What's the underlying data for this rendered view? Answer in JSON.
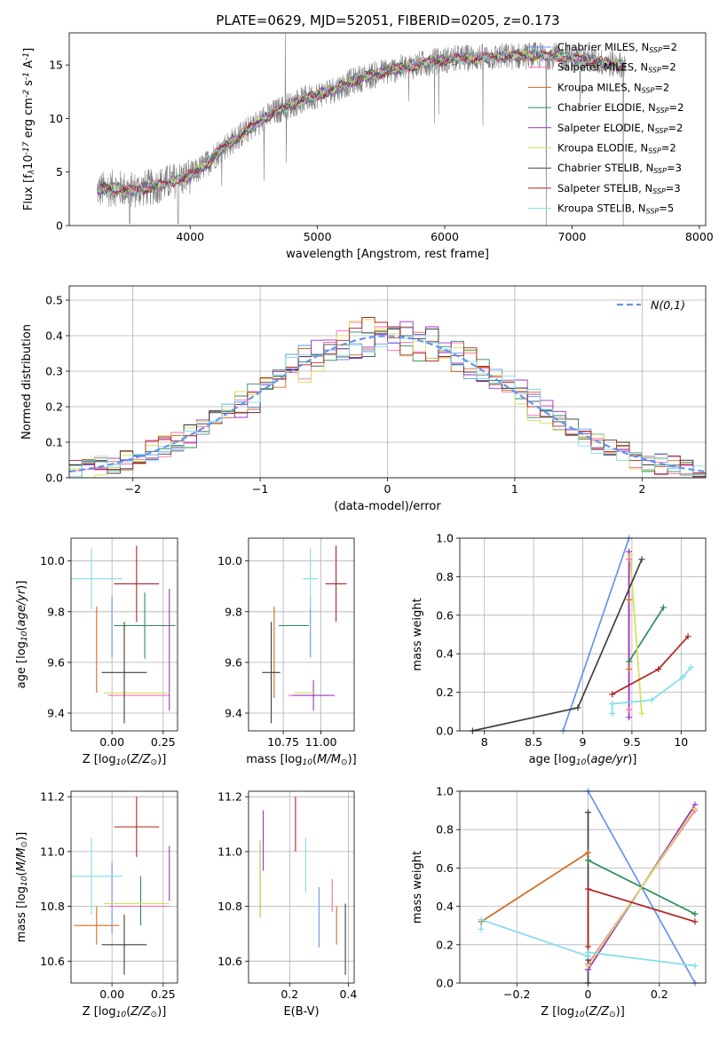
{
  "chart_data": [
    {
      "id": "spectrum",
      "type": "line",
      "title": "PLATE=0629, MJD=52051, FIBERID=0205, z=0.173",
      "xlabel": "wavelength [Angstrom, rest frame]",
      "ylabel": "Flux [f$_\\lambda$10$^{-17}$ erg cm$^{-2}$ s$^{-1}$ A$^{-1}$]",
      "xlim": [
        3050,
        8050
      ],
      "ylim": [
        0,
        18
      ],
      "xticks": [
        4000,
        5000,
        6000,
        7000,
        8000
      ],
      "yticks": [
        0,
        5,
        10,
        15
      ],
      "grid": false,
      "legend_position": "upper-right",
      "data_color": "#808080",
      "continuum": [
        [
          3270,
          3.3
        ],
        [
          3400,
          3.5
        ],
        [
          3550,
          3.3
        ],
        [
          3700,
          3.6
        ],
        [
          3850,
          4.1
        ],
        [
          3950,
          4.4
        ],
        [
          4050,
          5.0
        ],
        [
          4150,
          6.0
        ],
        [
          4250,
          7.2
        ],
        [
          4400,
          8.5
        ],
        [
          4550,
          9.8
        ],
        [
          4700,
          10.8
        ],
        [
          4850,
          11.6
        ],
        [
          5000,
          12.2
        ],
        [
          5150,
          12.8
        ],
        [
          5300,
          13.6
        ],
        [
          5500,
          14.3
        ],
        [
          5700,
          14.8
        ],
        [
          5900,
          15.3
        ],
        [
          6100,
          15.6
        ],
        [
          6300,
          15.7
        ],
        [
          6500,
          15.8
        ],
        [
          6700,
          15.9
        ],
        [
          6900,
          15.8
        ],
        [
          7100,
          15.5
        ],
        [
          7300,
          15.1
        ],
        [
          7420,
          15.0
        ]
      ],
      "series": [
        {
          "name": "Chabrier MILES, N$_{SSP}$=2",
          "color": "#6495ed"
        },
        {
          "name": "Salpeter MILES, N$_{SSP}$=2",
          "color": "#ff69b4"
        },
        {
          "name": "Kroupa MILES, N$_{SSP}$=2",
          "color": "#d2691e"
        },
        {
          "name": "Chabrier ELODIE, N$_{SSP}$=2",
          "color": "#2e8b57"
        },
        {
          "name": "Salpeter ELODIE, N$_{SSP}$=2",
          "color": "#9932cc"
        },
        {
          "name": "Kroupa ELODIE, N$_{SSP}$=2",
          "color": "#d4e157"
        },
        {
          "name": "Chabrier STELIB, N$_{SSP}$=3",
          "color": "#404040"
        },
        {
          "name": "Salpeter STELIB, N$_{SSP}$=3",
          "color": "#b22222"
        },
        {
          "name": "Kroupa STELIB, N$_{SSP}$=5",
          "color": "#80dee8"
        }
      ]
    },
    {
      "id": "residuals",
      "type": "area",
      "xlabel": "(data-model)/error",
      "ylabel": "Normed distribution",
      "xlim": [
        -2.5,
        2.5
      ],
      "ylim": [
        0,
        0.54
      ],
      "xticks": [
        -2,
        -1,
        0,
        1,
        2
      ],
      "yticks": [
        0.0,
        0.1,
        0.2,
        0.3,
        0.4,
        0.5
      ],
      "grid": true,
      "bin_width": 0.1,
      "legend_position": "upper-right",
      "reference": {
        "name": "$\\mathcal{N}(0,1)$",
        "color": "#6495ed",
        "style": "dashed"
      },
      "series": [
        {
          "color": "#6495ed"
        },
        {
          "color": "#ff69b4"
        },
        {
          "color": "#d2691e"
        },
        {
          "color": "#2e8b57"
        },
        {
          "color": "#9932cc"
        },
        {
          "color": "#d4e157"
        },
        {
          "color": "#404040"
        },
        {
          "color": "#b22222"
        },
        {
          "color": "#80dee8"
        }
      ]
    },
    {
      "id": "age-vs-Z",
      "type": "scatter",
      "xlabel": "Z [log$_{10}$($Z/Z_\\odot$)]",
      "ylabel": "age  [log$_{10}$($age/yr$)]",
      "xlim": [
        -0.2,
        0.32
      ],
      "ylim": [
        9.33,
        10.09
      ],
      "xticks": [
        0.0,
        0.25
      ],
      "xticklabels": [
        "0.00",
        "0.25"
      ],
      "yticks": [
        9.4,
        9.6,
        9.8,
        10.0
      ],
      "grid": true,
      "points": [
        {
          "color": "#6495ed",
          "x": 0.0,
          "xerr": 0.0,
          "y": 9.74,
          "yerr": 0.12
        },
        {
          "color": "#ff69b4",
          "x": 0.13,
          "xerr": 0.15,
          "y": 9.47,
          "yerr": 0.0
        },
        {
          "color": "#d2691e",
          "x": -0.075,
          "xerr": 0.0,
          "y": 9.65,
          "yerr": 0.17
        },
        {
          "color": "#2e8b57",
          "x": 0.16,
          "xerr": 0.15,
          "y": 9.745,
          "yerr": 0.13
        },
        {
          "color": "#9932cc",
          "x": 0.28,
          "xerr": 0.0,
          "y": 9.65,
          "yerr": 0.24
        },
        {
          "color": "#d4e157",
          "x": 0.12,
          "xerr": 0.16,
          "y": 9.48,
          "yerr": 0.0
        },
        {
          "color": "#404040",
          "x": 0.06,
          "xerr": 0.11,
          "y": 9.56,
          "yerr": 0.2
        },
        {
          "color": "#b22222",
          "x": 0.12,
          "xerr": 0.11,
          "y": 9.91,
          "yerr": 0.15
        },
        {
          "color": "#80dee8",
          "x": -0.1,
          "xerr": 0.15,
          "y": 9.93,
          "yerr": 0.12
        }
      ]
    },
    {
      "id": "age-vs-mass",
      "type": "scatter",
      "xlabel": "mass [log$_{10}$($M/M_\\odot$)]",
      "ylabel": "",
      "xlim": [
        10.52,
        11.22
      ],
      "ylim": [
        9.33,
        10.09
      ],
      "xticks": [
        10.75,
        11.0
      ],
      "xticklabels": [
        "10.75",
        "11.00"
      ],
      "yticks": [
        9.4,
        9.6,
        9.8,
        10.0
      ],
      "grid": true,
      "points": [
        {
          "color": "#6495ed",
          "x": 10.93,
          "xerr": 0.0,
          "y": 9.74,
          "yerr": 0.12
        },
        {
          "color": "#ff69b4",
          "x": 10.8,
          "xerr": 0.0,
          "y": 9.47,
          "yerr": 0.0
        },
        {
          "color": "#d2691e",
          "x": 10.69,
          "xerr": 0.0,
          "y": 9.64,
          "yerr": 0.18
        },
        {
          "color": "#2e8b57",
          "x": 10.82,
          "xerr": 0.1,
          "y": 9.745,
          "yerr": 0.0
        },
        {
          "color": "#9932cc",
          "x": 10.95,
          "xerr": 0.14,
          "y": 9.47,
          "yerr": 0.06
        },
        {
          "color": "#d4e157",
          "x": 10.89,
          "xerr": 0.07,
          "y": 9.48,
          "yerr": 0.0
        },
        {
          "color": "#404040",
          "x": 10.67,
          "xerr": 0.06,
          "y": 9.56,
          "yerr": 0.2
        },
        {
          "color": "#b22222",
          "x": 11.1,
          "xerr": 0.07,
          "y": 9.91,
          "yerr": 0.15
        },
        {
          "color": "#80dee8",
          "x": 10.93,
          "xerr": 0.05,
          "y": 9.93,
          "yerr": 0.12
        }
      ]
    },
    {
      "id": "weight-vs-age",
      "type": "line",
      "xlabel": "age  [log$_{10}$($age/yr$)]",
      "ylabel": "mass weight",
      "xlim": [
        7.75,
        10.25
      ],
      "ylim": [
        0,
        1.0
      ],
      "xticks": [
        8.0,
        8.5,
        9.0,
        9.5,
        10.0
      ],
      "yticks": [
        0.0,
        0.2,
        0.4,
        0.6,
        0.8,
        1.0
      ],
      "grid": true,
      "series": [
        {
          "color": "#6495ed",
          "points": [
            [
              8.8,
              0.0
            ],
            [
              9.47,
              1.0
            ]
          ]
        },
        {
          "color": "#ff69b4",
          "points": [
            [
              9.47,
              0.89
            ],
            [
              9.47,
              0.11
            ]
          ]
        },
        {
          "color": "#d2691e",
          "points": [
            [
              9.47,
              0.68
            ],
            [
              9.47,
              0.32
            ]
          ]
        },
        {
          "color": "#2e8b57",
          "points": [
            [
              9.47,
              0.36
            ],
            [
              9.82,
              0.64
            ]
          ]
        },
        {
          "color": "#9932cc",
          "points": [
            [
              9.47,
              0.93
            ],
            [
              9.47,
              0.07
            ]
          ]
        },
        {
          "color": "#d4e157",
          "points": [
            [
              9.48,
              0.91
            ],
            [
              9.6,
              0.09
            ]
          ]
        },
        {
          "color": "#404040",
          "points": [
            [
              7.88,
              0.0
            ],
            [
              8.95,
              0.12
            ],
            [
              9.6,
              0.89
            ]
          ]
        },
        {
          "color": "#b22222",
          "points": [
            [
              9.3,
              0.19
            ],
            [
              9.77,
              0.32
            ],
            [
              10.07,
              0.49
            ]
          ]
        },
        {
          "color": "#80dee8",
          "points": [
            [
              9.3,
              0.09
            ],
            [
              9.3,
              0.14
            ],
            [
              9.7,
              0.16
            ],
            [
              10.02,
              0.28
            ],
            [
              10.1,
              0.33
            ]
          ]
        }
      ]
    },
    {
      "id": "mass-vs-Z",
      "type": "scatter",
      "xlabel": "Z [log$_{10}$($Z/Z_\\odot$)]",
      "ylabel": "mass [log$_{10}$($M/M_\\odot$)]",
      "xlim": [
        -0.2,
        0.32
      ],
      "ylim": [
        10.52,
        11.22
      ],
      "xticks": [
        0.0,
        0.25
      ],
      "xticklabels": [
        "0.00",
        "0.25"
      ],
      "yticks": [
        10.6,
        10.8,
        11.0,
        11.2
      ],
      "grid": true,
      "points": [
        {
          "color": "#6495ed",
          "x": 0.0,
          "xerr": 0.0,
          "y": 10.83,
          "yerr": 0.13
        },
        {
          "color": "#ff69b4",
          "x": 0.13,
          "xerr": 0.15,
          "y": 10.8,
          "yerr": 0.0
        },
        {
          "color": "#d2691e",
          "x": -0.075,
          "xerr": 0.11,
          "y": 10.73,
          "yerr": 0.07
        },
        {
          "color": "#2e8b57",
          "x": 0.14,
          "xerr": 0.0,
          "y": 10.82,
          "yerr": 0.09
        },
        {
          "color": "#9932cc",
          "x": 0.28,
          "xerr": 0.0,
          "y": 10.92,
          "yerr": 0.1
        },
        {
          "color": "#d4e157",
          "x": 0.12,
          "xerr": 0.16,
          "y": 10.81,
          "yerr": 0.0
        },
        {
          "color": "#404040",
          "x": 0.06,
          "xerr": 0.11,
          "y": 10.66,
          "yerr": 0.11
        },
        {
          "color": "#b22222",
          "x": 0.12,
          "xerr": 0.11,
          "y": 11.09,
          "yerr": 0.11
        },
        {
          "color": "#80dee8",
          "x": -0.1,
          "xerr": 0.15,
          "y": 10.91,
          "yerr": 0.14
        }
      ]
    },
    {
      "id": "mass-vs-ebv",
      "type": "scatter",
      "xlabel": "E(B-V)",
      "ylabel": "",
      "xlim": [
        0.06,
        0.42
      ],
      "ylim": [
        10.52,
        11.22
      ],
      "xticks": [
        0.2,
        0.4
      ],
      "xticklabels": [
        "0.2",
        "0.4"
      ],
      "yticks": [
        10.6,
        10.8,
        11.0,
        11.2
      ],
      "grid": true,
      "points": [
        {
          "color": "#6495ed",
          "x": 0.3,
          "xerr": 0.0,
          "y": 10.76,
          "yerr": 0.11
        },
        {
          "color": "#ff69b4",
          "x": 0.345,
          "xerr": 0.0,
          "y": 10.84,
          "yerr": 0.06
        },
        {
          "color": "#d2691e",
          "x": 0.36,
          "xerr": 0.0,
          "y": 10.73,
          "yerr": 0.07
        },
        {
          "color": "#2e8b57",
          "x": 0.1,
          "xerr": 0.0,
          "y": 10.9,
          "yerr": 0.14
        },
        {
          "color": "#9932cc",
          "x": 0.11,
          "xerr": 0.0,
          "y": 11.04,
          "yerr": 0.11
        },
        {
          "color": "#d4e157",
          "x": 0.1,
          "xerr": 0.0,
          "y": 10.9,
          "yerr": 0.14
        },
        {
          "color": "#404040",
          "x": 0.39,
          "xerr": 0.0,
          "y": 10.68,
          "yerr": 0.13
        },
        {
          "color": "#b22222",
          "x": 0.22,
          "xerr": 0.0,
          "y": 11.1,
          "yerr": 0.1
        },
        {
          "color": "#80dee8",
          "x": 0.255,
          "xerr": 0.0,
          "y": 10.95,
          "yerr": 0.1
        }
      ]
    },
    {
      "id": "weight-vs-Z",
      "type": "line",
      "xlabel": "Z [log$_{10}$($Z/Z_\\odot$)]",
      "ylabel": "mass weight",
      "xlim": [
        -0.36,
        0.33
      ],
      "ylim": [
        0,
        1.0
      ],
      "xticks": [
        -0.2,
        0.0,
        0.2
      ],
      "yticks": [
        0.0,
        0.2,
        0.4,
        0.6,
        0.8,
        1.0
      ],
      "grid": true,
      "series": [
        {
          "color": "#6495ed",
          "points": [
            [
              0.0,
              1.0
            ],
            [
              0.3,
              0.0
            ]
          ]
        },
        {
          "color": "#ff69b4",
          "points": [
            [
              0.0,
              0.1
            ],
            [
              0.3,
              0.9
            ]
          ]
        },
        {
          "color": "#d2691e",
          "points": [
            [
              -0.3,
              0.32
            ],
            [
              0.0,
              0.68
            ]
          ]
        },
        {
          "color": "#2e8b57",
          "points": [
            [
              0.0,
              0.64
            ],
            [
              0.3,
              0.36
            ]
          ]
        },
        {
          "color": "#9932cc",
          "points": [
            [
              0.0,
              0.07
            ],
            [
              0.3,
              0.93
            ]
          ]
        },
        {
          "color": "#d4e157",
          "points": [
            [
              0.0,
              0.09
            ],
            [
              0.3,
              0.91
            ]
          ]
        },
        {
          "color": "#404040",
          "points": [
            [
              0.0,
              0.0
            ],
            [
              0.0,
              0.12
            ],
            [
              0.0,
              0.89
            ]
          ]
        },
        {
          "color": "#b22222",
          "points": [
            [
              0.0,
              0.19
            ],
            [
              0.0,
              0.49
            ],
            [
              0.3,
              0.32
            ]
          ]
        },
        {
          "color": "#80dee8",
          "points": [
            [
              -0.3,
              0.28
            ],
            [
              -0.3,
              0.33
            ],
            [
              0.0,
              0.14
            ],
            [
              0.0,
              0.16
            ],
            [
              0.3,
              0.09
            ]
          ]
        }
      ]
    }
  ]
}
